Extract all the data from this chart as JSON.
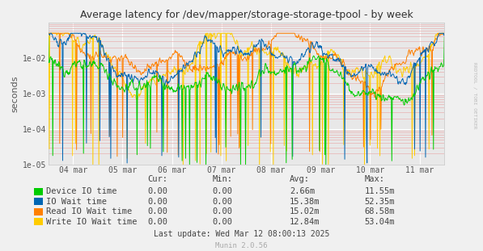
{
  "title": "Average latency for /dev/mapper/storage-storage-tpool - by week",
  "ylabel": "seconds",
  "background_color": "#F0F0F0",
  "plot_bg_color": "#E8E8E8",
  "grid_color_major": "#FFFFFF",
  "grid_color_minor": "#F0C0C0",
  "x_ticks_labels": [
    "04 mar",
    "05 mar",
    "06 mar",
    "07 mar",
    "08 mar",
    "09 mar",
    "10 mar",
    "11 mar"
  ],
  "legend_entries": [
    {
      "label": "Device IO time",
      "color": "#00CC00"
    },
    {
      "label": "IO Wait time",
      "color": "#0066B3"
    },
    {
      "label": "Read IO Wait time",
      "color": "#FF8000"
    },
    {
      "label": "Write IO Wait time",
      "color": "#FFCC00"
    }
  ],
  "legend_table": {
    "headers": [
      "Cur:",
      "Min:",
      "Avg:",
      "Max:"
    ],
    "rows": [
      [
        "0.00",
        "0.00",
        "2.66m",
        "11.55m"
      ],
      [
        "0.00",
        "0.00",
        "15.38m",
        "52.35m"
      ],
      [
        "0.00",
        "0.00",
        "15.02m",
        "68.58m"
      ],
      [
        "0.00",
        "0.00",
        "12.84m",
        "53.04m"
      ]
    ]
  },
  "last_update": "Last update: Wed Mar 12 08:00:13 2025",
  "munin_version": "Munin 2.0.56",
  "watermark": "RRDTOOL / TOBI OETIKER"
}
